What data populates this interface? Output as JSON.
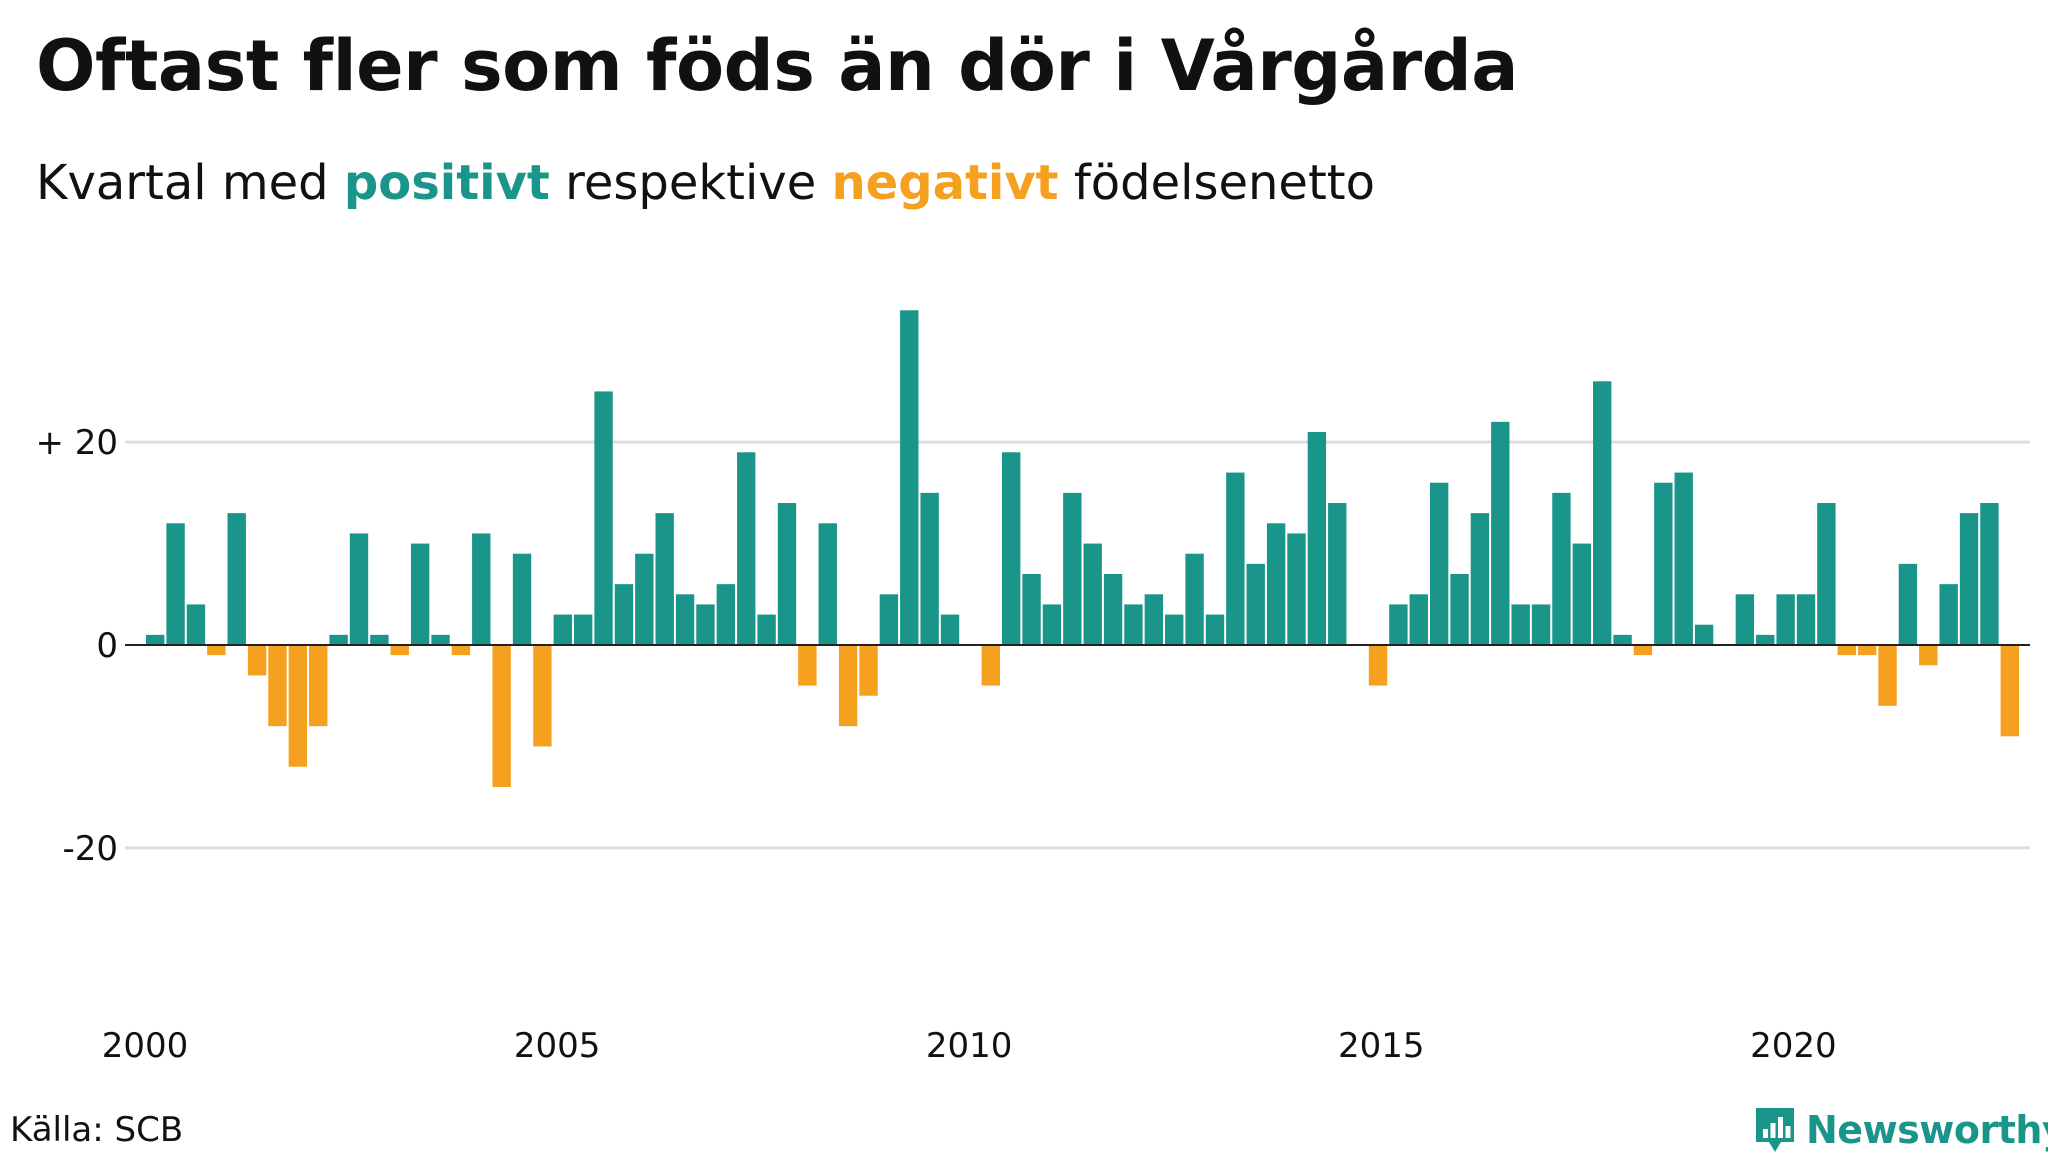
{
  "title": "Oftast fler som föds än dör i Vårgårda",
  "subtitle": {
    "prefix": "Kvartal med ",
    "positive_word": "positivt",
    "middle": " respektive ",
    "negative_word": "negativt",
    "suffix": " födelsenetto"
  },
  "source": "Källa: SCB",
  "brand": "Newsworthy",
  "colors": {
    "positive": "#1a9589",
    "negative": "#f5a01f",
    "grid": "#dddddd",
    "baseline": "#222222"
  },
  "chart_data": {
    "type": "bar",
    "y_tick_labels": [
      {
        "value": 20,
        "label": "+ 20"
      },
      {
        "value": 0,
        "label": "0"
      },
      {
        "value": -20,
        "label": "-20"
      }
    ],
    "x_tick_labels": [
      {
        "value": 2000,
        "label": "2000"
      },
      {
        "value": 2005,
        "label": "2005"
      },
      {
        "value": 2010,
        "label": "2010"
      },
      {
        "value": 2015,
        "label": "2015"
      },
      {
        "value": 2020,
        "label": "2020"
      }
    ],
    "ylim": [
      -35,
      35
    ],
    "xlim": [
      2000,
      2022.75
    ],
    "grid": true,
    "x_start": 2000,
    "step": 0.25,
    "values": [
      1,
      12,
      4,
      -1,
      13,
      -3,
      -8,
      -12,
      -8,
      1,
      11,
      1,
      -1,
      10,
      1,
      -1,
      11,
      -14,
      9,
      -10,
      3,
      3,
      25,
      6,
      9,
      13,
      5,
      4,
      6,
      19,
      3,
      14,
      -4,
      12,
      -8,
      -5,
      5,
      33,
      15,
      3,
      0,
      -4,
      19,
      7,
      4,
      15,
      10,
      7,
      4,
      5,
      3,
      9,
      3,
      17,
      8,
      12,
      11,
      21,
      14,
      0,
      -4,
      4,
      5,
      16,
      7,
      13,
      22,
      4,
      4,
      15,
      10,
      26,
      1,
      -1,
      16,
      17,
      2,
      0,
      5,
      1,
      5,
      5,
      14,
      -1,
      -1,
      -6,
      8,
      -2,
      6,
      13,
      14,
      -9
    ]
  }
}
